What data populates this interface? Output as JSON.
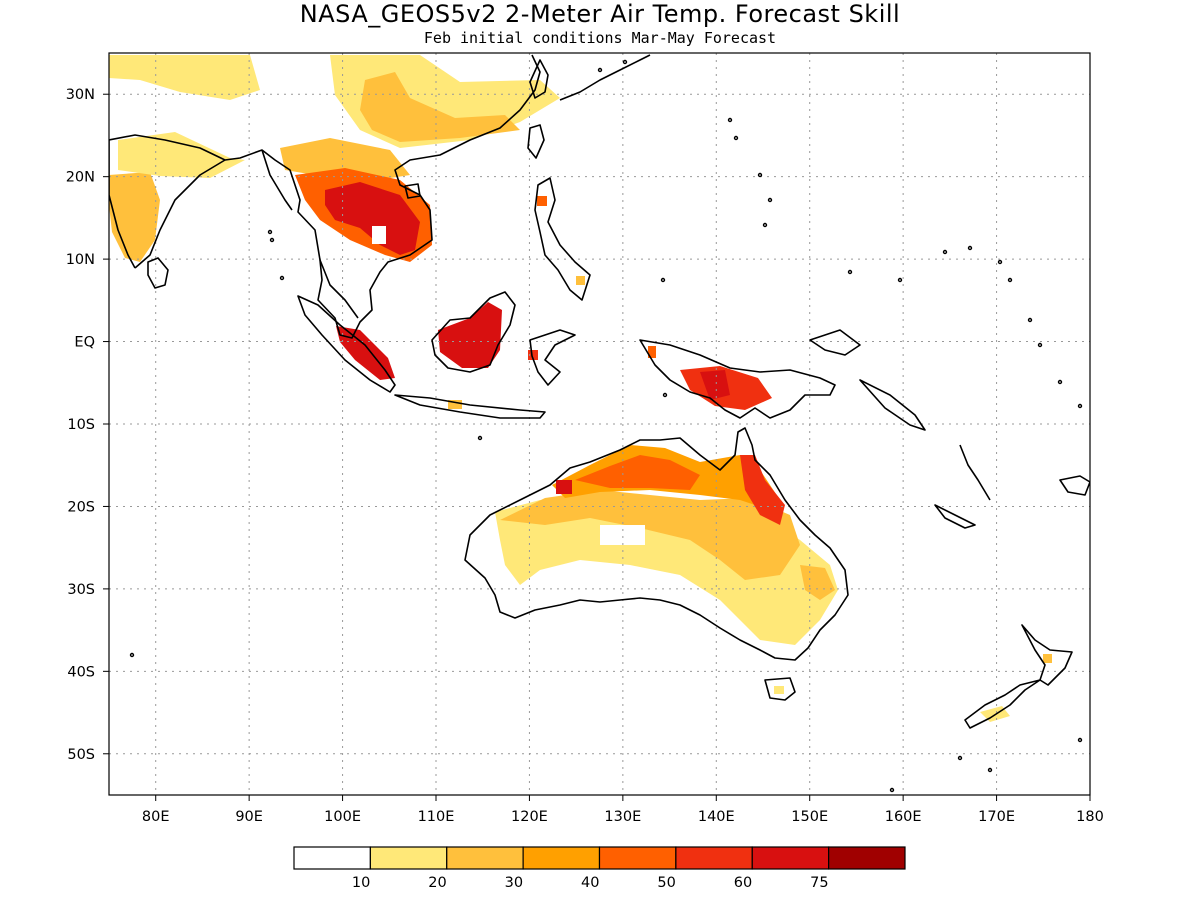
{
  "title": "NASA_GEOS5v2 2-Meter Air Temp. Forecast Skill",
  "subtitle": "Feb initial conditions  Mar-May Forecast",
  "map": {
    "lon_range": [
      75,
      180
    ],
    "lat_range": [
      -55,
      35
    ],
    "lat_ticks": [
      {
        "value": 30,
        "label": "30N"
      },
      {
        "value": 20,
        "label": "20N"
      },
      {
        "value": 10,
        "label": "10N"
      },
      {
        "value": 0,
        "label": "EQ"
      },
      {
        "value": -10,
        "label": "10S"
      },
      {
        "value": -20,
        "label": "20S"
      },
      {
        "value": -30,
        "label": "30S"
      },
      {
        "value": -40,
        "label": "40S"
      },
      {
        "value": -50,
        "label": "50S"
      }
    ],
    "lon_ticks": [
      {
        "value": 80,
        "label": "80E"
      },
      {
        "value": 90,
        "label": "90E"
      },
      {
        "value": 100,
        "label": "100E"
      },
      {
        "value": 110,
        "label": "110E"
      },
      {
        "value": 120,
        "label": "120E"
      },
      {
        "value": 130,
        "label": "130E"
      },
      {
        "value": 140,
        "label": "140E"
      },
      {
        "value": 150,
        "label": "150E"
      },
      {
        "value": 160,
        "label": "160E"
      },
      {
        "value": 170,
        "label": "170E"
      },
      {
        "value": 180,
        "label": "180"
      }
    ],
    "grid": true
  },
  "colorbar": {
    "colors": [
      "#ffffff",
      "#ffe878",
      "#ffc03c",
      "#ffa000",
      "#ff6000",
      "#f03010",
      "#d81010",
      "#a00000"
    ],
    "labels": [
      "10",
      "20",
      "30",
      "40",
      "50",
      "60",
      "75"
    ]
  },
  "skill_colors": {
    "c10": "#ffe878",
    "c20": "#ffc03c",
    "c30": "#ffa000",
    "c40": "#ff6000",
    "c50": "#f03010",
    "c60": "#d81010"
  }
}
